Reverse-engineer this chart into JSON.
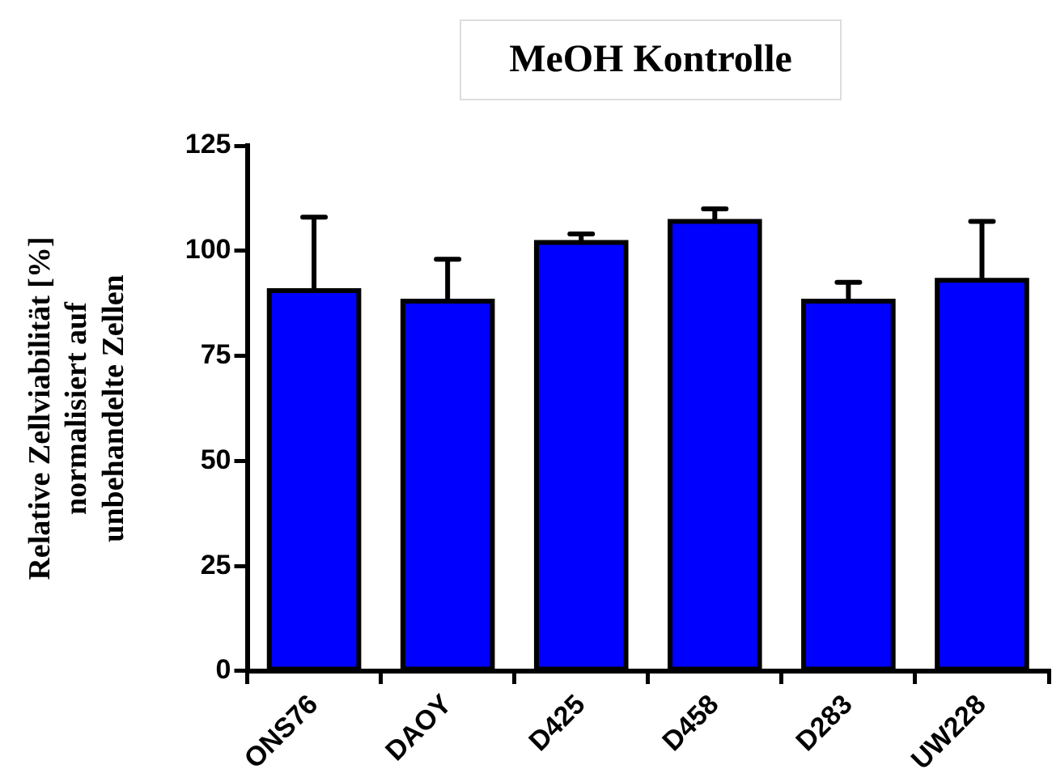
{
  "chart_data": {
    "type": "bar",
    "title": "MeOH Kontrolle",
    "ylabel": "Relative Zellviabilität [%]\nnormalisiert auf\nunbehandelte Zellen",
    "categories": [
      "ONS76",
      "DAOY",
      "D425",
      "D458",
      "D283",
      "UW228"
    ],
    "values": [
      90.5,
      88,
      102,
      107,
      88,
      93
    ],
    "errors": [
      [
        90.5,
        108
      ],
      [
        88,
        98
      ],
      [
        102,
        104
      ],
      [
        107,
        110
      ],
      [
        88,
        92.5
      ],
      [
        93,
        107
      ]
    ],
    "color": "#0000ff",
    "ylim": [
      0,
      125
    ],
    "yticks": [
      0,
      25,
      50,
      75,
      100,
      125
    ],
    "grid": false,
    "legend": false
  }
}
